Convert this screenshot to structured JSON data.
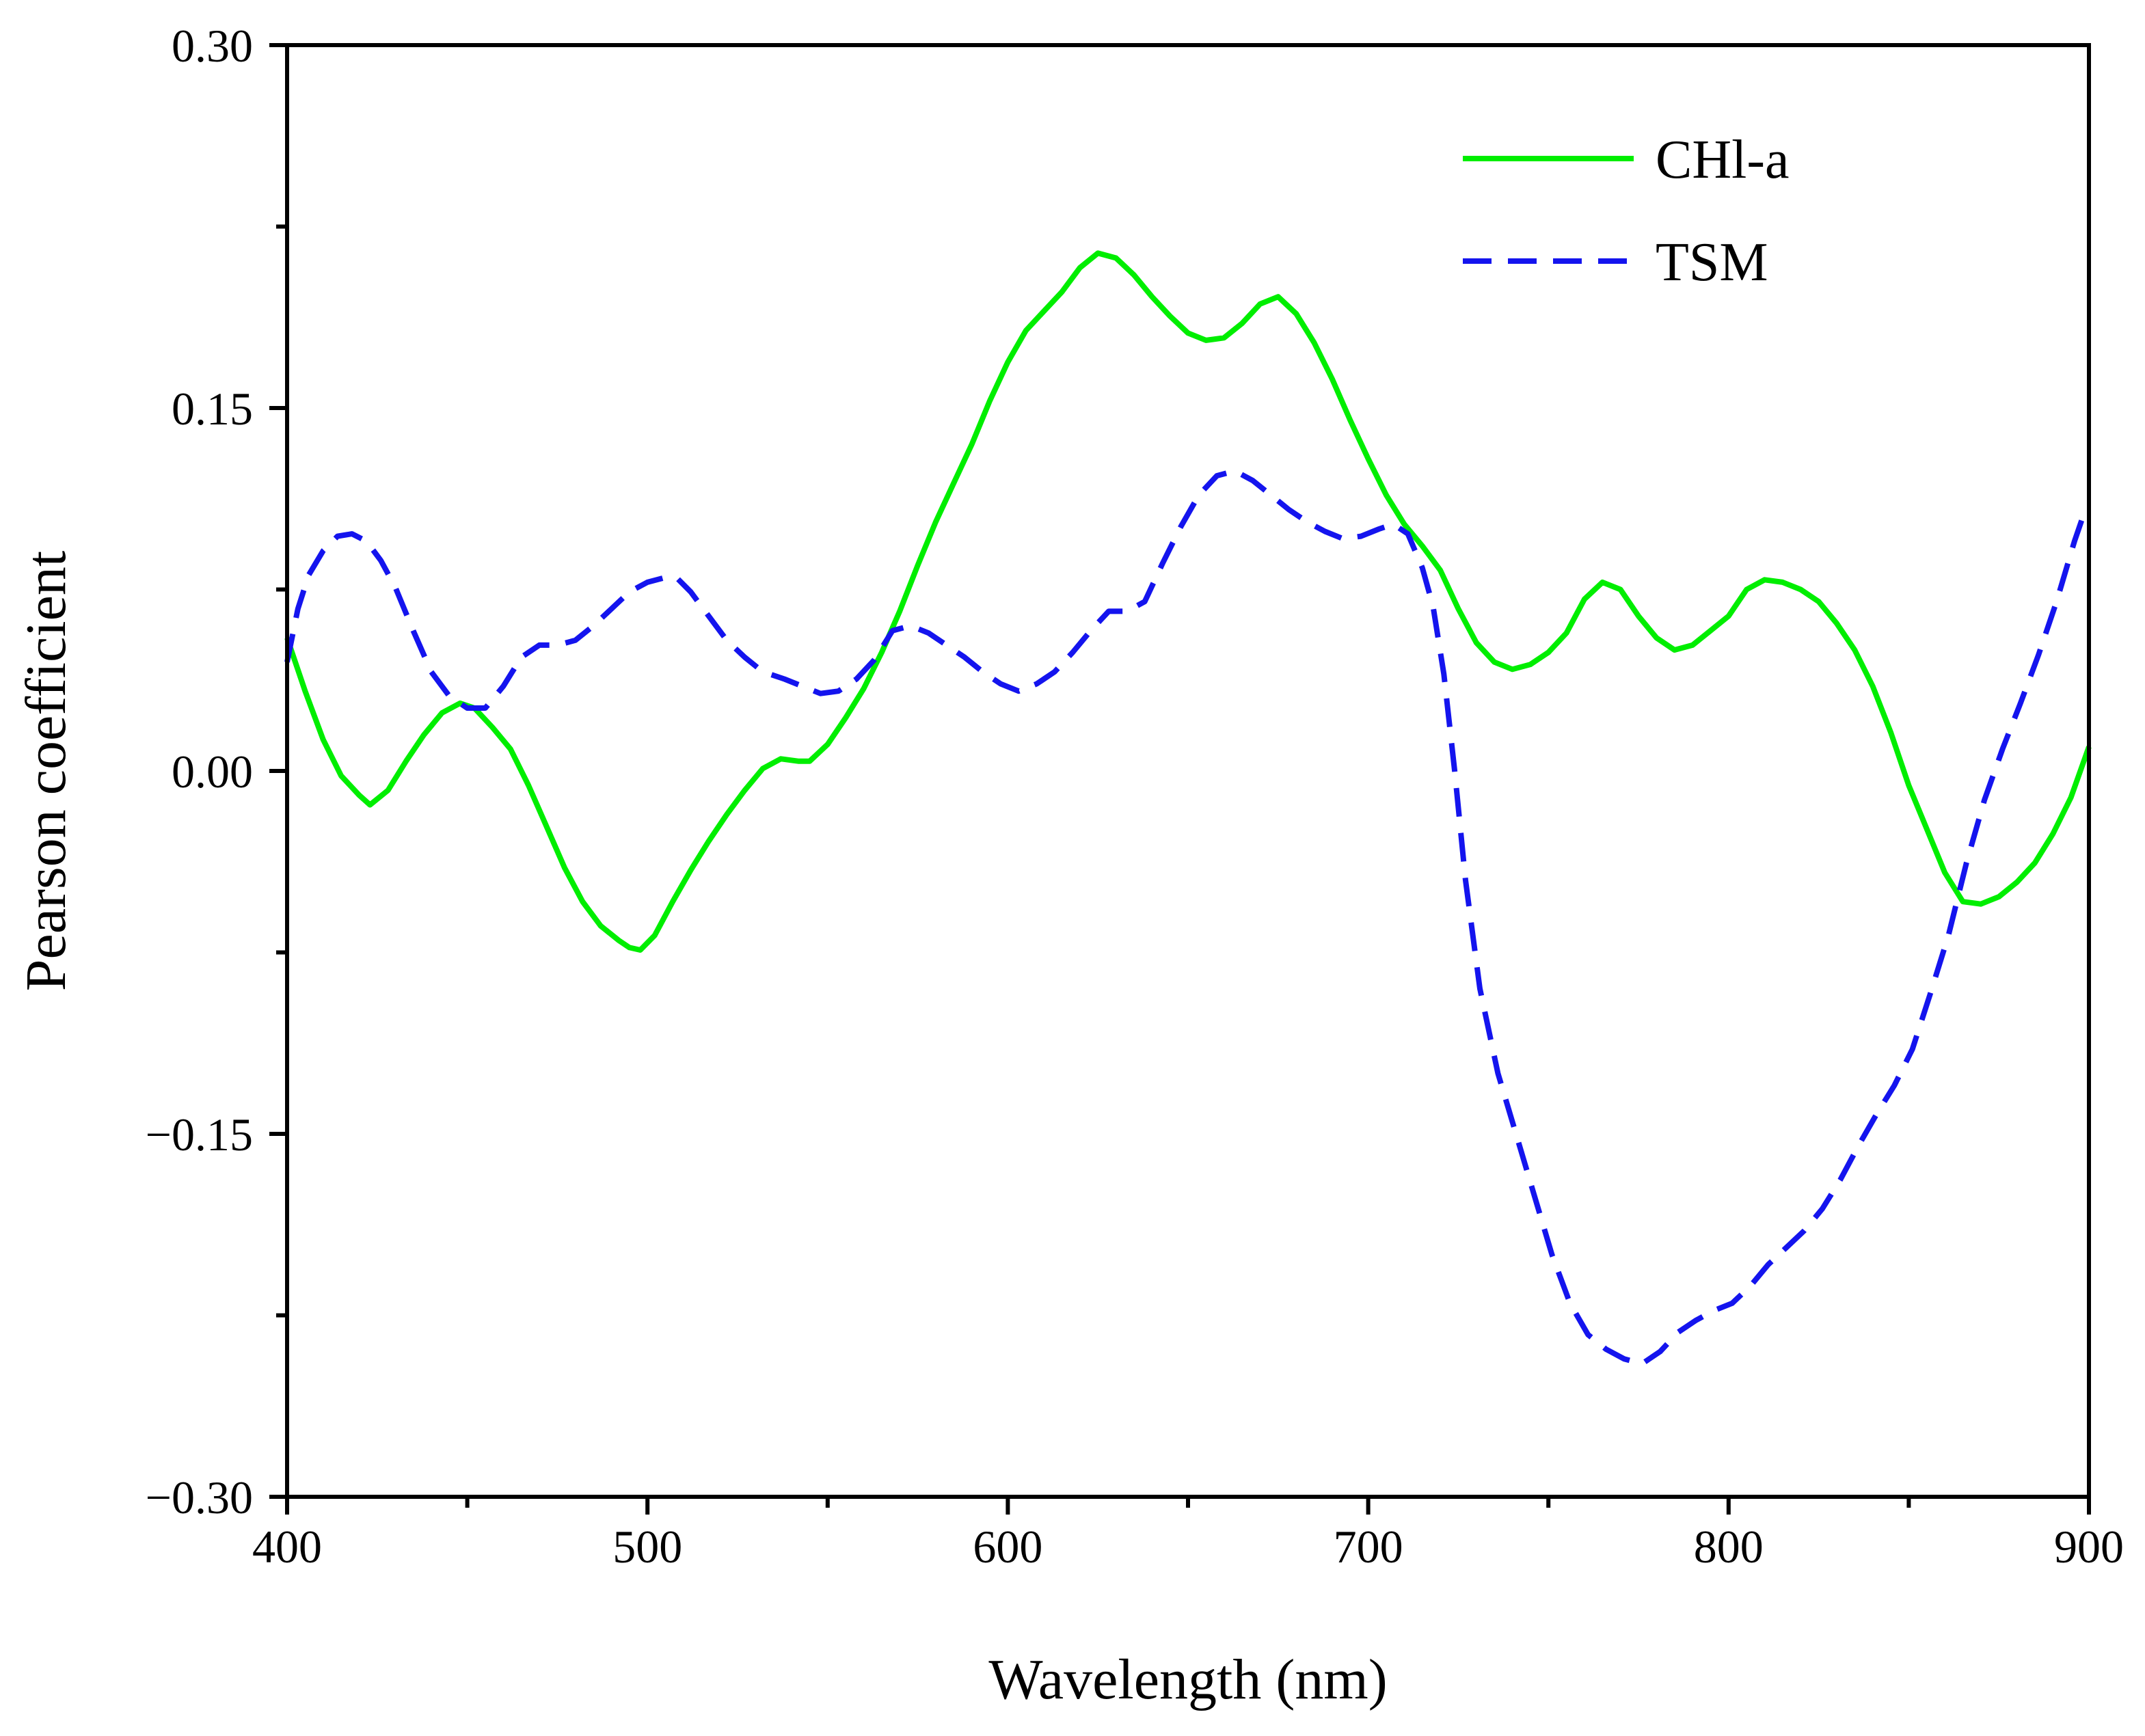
{
  "chart_data": {
    "type": "line",
    "title": "",
    "xlabel": "Wavelength (nm)",
    "ylabel": "Pearson coefficient",
    "xlim": [
      400,
      900
    ],
    "ylim": [
      -0.3,
      0.3
    ],
    "x_ticks": [
      400,
      500,
      600,
      700,
      800,
      900
    ],
    "x_tick_labels": [
      "400",
      "500",
      "600",
      "700",
      "800",
      "900"
    ],
    "x_minor_ticks": [
      450,
      550,
      650,
      750,
      850
    ],
    "y_ticks": [
      0.3,
      0.15,
      0.0,
      -0.15,
      -0.3
    ],
    "y_tick_labels": [
      "0.30",
      "0.15",
      "0.00",
      "−0.15",
      "−0.30"
    ],
    "y_minor_ticks": [
      0.225,
      0.075,
      -0.075,
      -0.225
    ],
    "grid": false,
    "legend_position": "top-right",
    "series": [
      {
        "name": "CHl-a",
        "color": "#00ee00",
        "dash": "solid",
        "points": [
          [
            400,
            0.055
          ],
          [
            405,
            0.033
          ],
          [
            410,
            0.013
          ],
          [
            415,
            -0.002
          ],
          [
            420,
            -0.01
          ],
          [
            423,
            -0.014
          ],
          [
            428,
            -0.008
          ],
          [
            433,
            0.004
          ],
          [
            438,
            0.015
          ],
          [
            443,
            0.024
          ],
          [
            448,
            0.028
          ],
          [
            452,
            0.026
          ],
          [
            457,
            0.018
          ],
          [
            462,
            0.009
          ],
          [
            467,
            -0.006
          ],
          [
            472,
            -0.023
          ],
          [
            477,
            -0.04
          ],
          [
            482,
            -0.054
          ],
          [
            487,
            -0.064
          ],
          [
            492,
            -0.07
          ],
          [
            495,
            -0.073
          ],
          [
            498,
            -0.074
          ],
          [
            502,
            -0.068
          ],
          [
            507,
            -0.054
          ],
          [
            512,
            -0.041
          ],
          [
            517,
            -0.029
          ],
          [
            522,
            -0.018
          ],
          [
            527,
            -0.008
          ],
          [
            532,
            0.001
          ],
          [
            537,
            0.005
          ],
          [
            542,
            0.004
          ],
          [
            545,
            0.004
          ],
          [
            550,
            0.011
          ],
          [
            555,
            0.022
          ],
          [
            560,
            0.034
          ],
          [
            565,
            0.049
          ],
          [
            570,
            0.066
          ],
          [
            575,
            0.085
          ],
          [
            580,
            0.103
          ],
          [
            585,
            0.119
          ],
          [
            590,
            0.135
          ],
          [
            595,
            0.153
          ],
          [
            600,
            0.169
          ],
          [
            605,
            0.182
          ],
          [
            610,
            0.19
          ],
          [
            615,
            0.198
          ],
          [
            620,
            0.208
          ],
          [
            625,
            0.214
          ],
          [
            630,
            0.212
          ],
          [
            635,
            0.205
          ],
          [
            640,
            0.196
          ],
          [
            645,
            0.188
          ],
          [
            650,
            0.181
          ],
          [
            655,
            0.178
          ],
          [
            660,
            0.179
          ],
          [
            665,
            0.185
          ],
          [
            670,
            0.193
          ],
          [
            675,
            0.196
          ],
          [
            680,
            0.189
          ],
          [
            685,
            0.177
          ],
          [
            690,
            0.162
          ],
          [
            695,
            0.145
          ],
          [
            700,
            0.129
          ],
          [
            705,
            0.114
          ],
          [
            710,
            0.102
          ],
          [
            715,
            0.093
          ],
          [
            720,
            0.083
          ],
          [
            725,
            0.067
          ],
          [
            730,
            0.053
          ],
          [
            735,
            0.045
          ],
          [
            740,
            0.042
          ],
          [
            745,
            0.044
          ],
          [
            750,
            0.049
          ],
          [
            755,
            0.057
          ],
          [
            760,
            0.071
          ],
          [
            765,
            0.078
          ],
          [
            770,
            0.075
          ],
          [
            775,
            0.064
          ],
          [
            780,
            0.055
          ],
          [
            785,
            0.05
          ],
          [
            790,
            0.052
          ],
          [
            795,
            0.058
          ],
          [
            800,
            0.064
          ],
          [
            805,
            0.075
          ],
          [
            810,
            0.079
          ],
          [
            815,
            0.078
          ],
          [
            820,
            0.075
          ],
          [
            825,
            0.07
          ],
          [
            830,
            0.061
          ],
          [
            835,
            0.05
          ],
          [
            840,
            0.035
          ],
          [
            845,
            0.016
          ],
          [
            850,
            -0.006
          ],
          [
            855,
            -0.024
          ],
          [
            860,
            -0.042
          ],
          [
            865,
            -0.054
          ],
          [
            870,
            -0.055
          ],
          [
            875,
            -0.052
          ],
          [
            880,
            -0.046
          ],
          [
            885,
            -0.038
          ],
          [
            890,
            -0.026
          ],
          [
            895,
            -0.011
          ],
          [
            900,
            0.01
          ]
        ]
      },
      {
        "name": "TSM",
        "color": "#1414ee",
        "dash": "dashed",
        "points": [
          [
            400,
            0.045
          ],
          [
            403,
            0.067
          ],
          [
            406,
            0.081
          ],
          [
            410,
            0.091
          ],
          [
            414,
            0.097
          ],
          [
            418,
            0.098
          ],
          [
            422,
            0.095
          ],
          [
            426,
            0.087
          ],
          [
            430,
            0.076
          ],
          [
            435,
            0.058
          ],
          [
            440,
            0.041
          ],
          [
            445,
            0.031
          ],
          [
            450,
            0.026
          ],
          [
            455,
            0.026
          ],
          [
            460,
            0.035
          ],
          [
            465,
            0.047
          ],
          [
            470,
            0.052
          ],
          [
            475,
            0.052
          ],
          [
            480,
            0.054
          ],
          [
            485,
            0.06
          ],
          [
            490,
            0.067
          ],
          [
            495,
            0.074
          ],
          [
            500,
            0.078
          ],
          [
            505,
            0.08
          ],
          [
            508,
            0.08
          ],
          [
            512,
            0.074
          ],
          [
            517,
            0.064
          ],
          [
            522,
            0.054
          ],
          [
            527,
            0.047
          ],
          [
            532,
            0.041
          ],
          [
            538,
            0.038
          ],
          [
            543,
            0.035
          ],
          [
            548,
            0.032
          ],
          [
            553,
            0.033
          ],
          [
            558,
            0.038
          ],
          [
            563,
            0.046
          ],
          [
            568,
            0.058
          ],
          [
            573,
            0.06
          ],
          [
            578,
            0.057
          ],
          [
            583,
            0.052
          ],
          [
            588,
            0.047
          ],
          [
            593,
            0.041
          ],
          [
            598,
            0.036
          ],
          [
            603,
            0.033
          ],
          [
            608,
            0.036
          ],
          [
            613,
            0.041
          ],
          [
            618,
            0.049
          ],
          [
            623,
            0.058
          ],
          [
            628,
            0.066
          ],
          [
            633,
            0.066
          ],
          [
            638,
            0.07
          ],
          [
            643,
            0.086
          ],
          [
            648,
            0.101
          ],
          [
            653,
            0.114
          ],
          [
            658,
            0.122
          ],
          [
            663,
            0.124
          ],
          [
            668,
            0.12
          ],
          [
            673,
            0.114
          ],
          [
            678,
            0.108
          ],
          [
            683,
            0.103
          ],
          [
            688,
            0.099
          ],
          [
            693,
            0.096
          ],
          [
            698,
            0.097
          ],
          [
            703,
            0.1
          ],
          [
            707,
            0.102
          ],
          [
            711,
            0.098
          ],
          [
            715,
            0.084
          ],
          [
            718,
            0.068
          ],
          [
            721,
            0.04
          ],
          [
            724,
            0.0
          ],
          [
            727,
            -0.045
          ],
          [
            731,
            -0.09
          ],
          [
            736,
            -0.125
          ],
          [
            741,
            -0.15
          ],
          [
            746,
            -0.175
          ],
          [
            751,
            -0.2
          ],
          [
            756,
            -0.22
          ],
          [
            761,
            -0.233
          ],
          [
            766,
            -0.239
          ],
          [
            771,
            -0.243
          ],
          [
            776,
            -0.245
          ],
          [
            781,
            -0.24
          ],
          [
            786,
            -0.232
          ],
          [
            791,
            -0.227
          ],
          [
            796,
            -0.223
          ],
          [
            801,
            -0.22
          ],
          [
            806,
            -0.213
          ],
          [
            811,
            -0.204
          ],
          [
            816,
            -0.197
          ],
          [
            821,
            -0.19
          ],
          [
            826,
            -0.181
          ],
          [
            831,
            -0.169
          ],
          [
            836,
            -0.155
          ],
          [
            841,
            -0.142
          ],
          [
            846,
            -0.13
          ],
          [
            851,
            -0.115
          ],
          [
            856,
            -0.092
          ],
          [
            861,
            -0.068
          ],
          [
            866,
            -0.038
          ],
          [
            871,
            -0.012
          ],
          [
            876,
            0.009
          ],
          [
            881,
            0.028
          ],
          [
            886,
            0.048
          ],
          [
            891,
            0.07
          ],
          [
            896,
            0.095
          ],
          [
            899,
            0.108
          ]
        ]
      }
    ]
  }
}
